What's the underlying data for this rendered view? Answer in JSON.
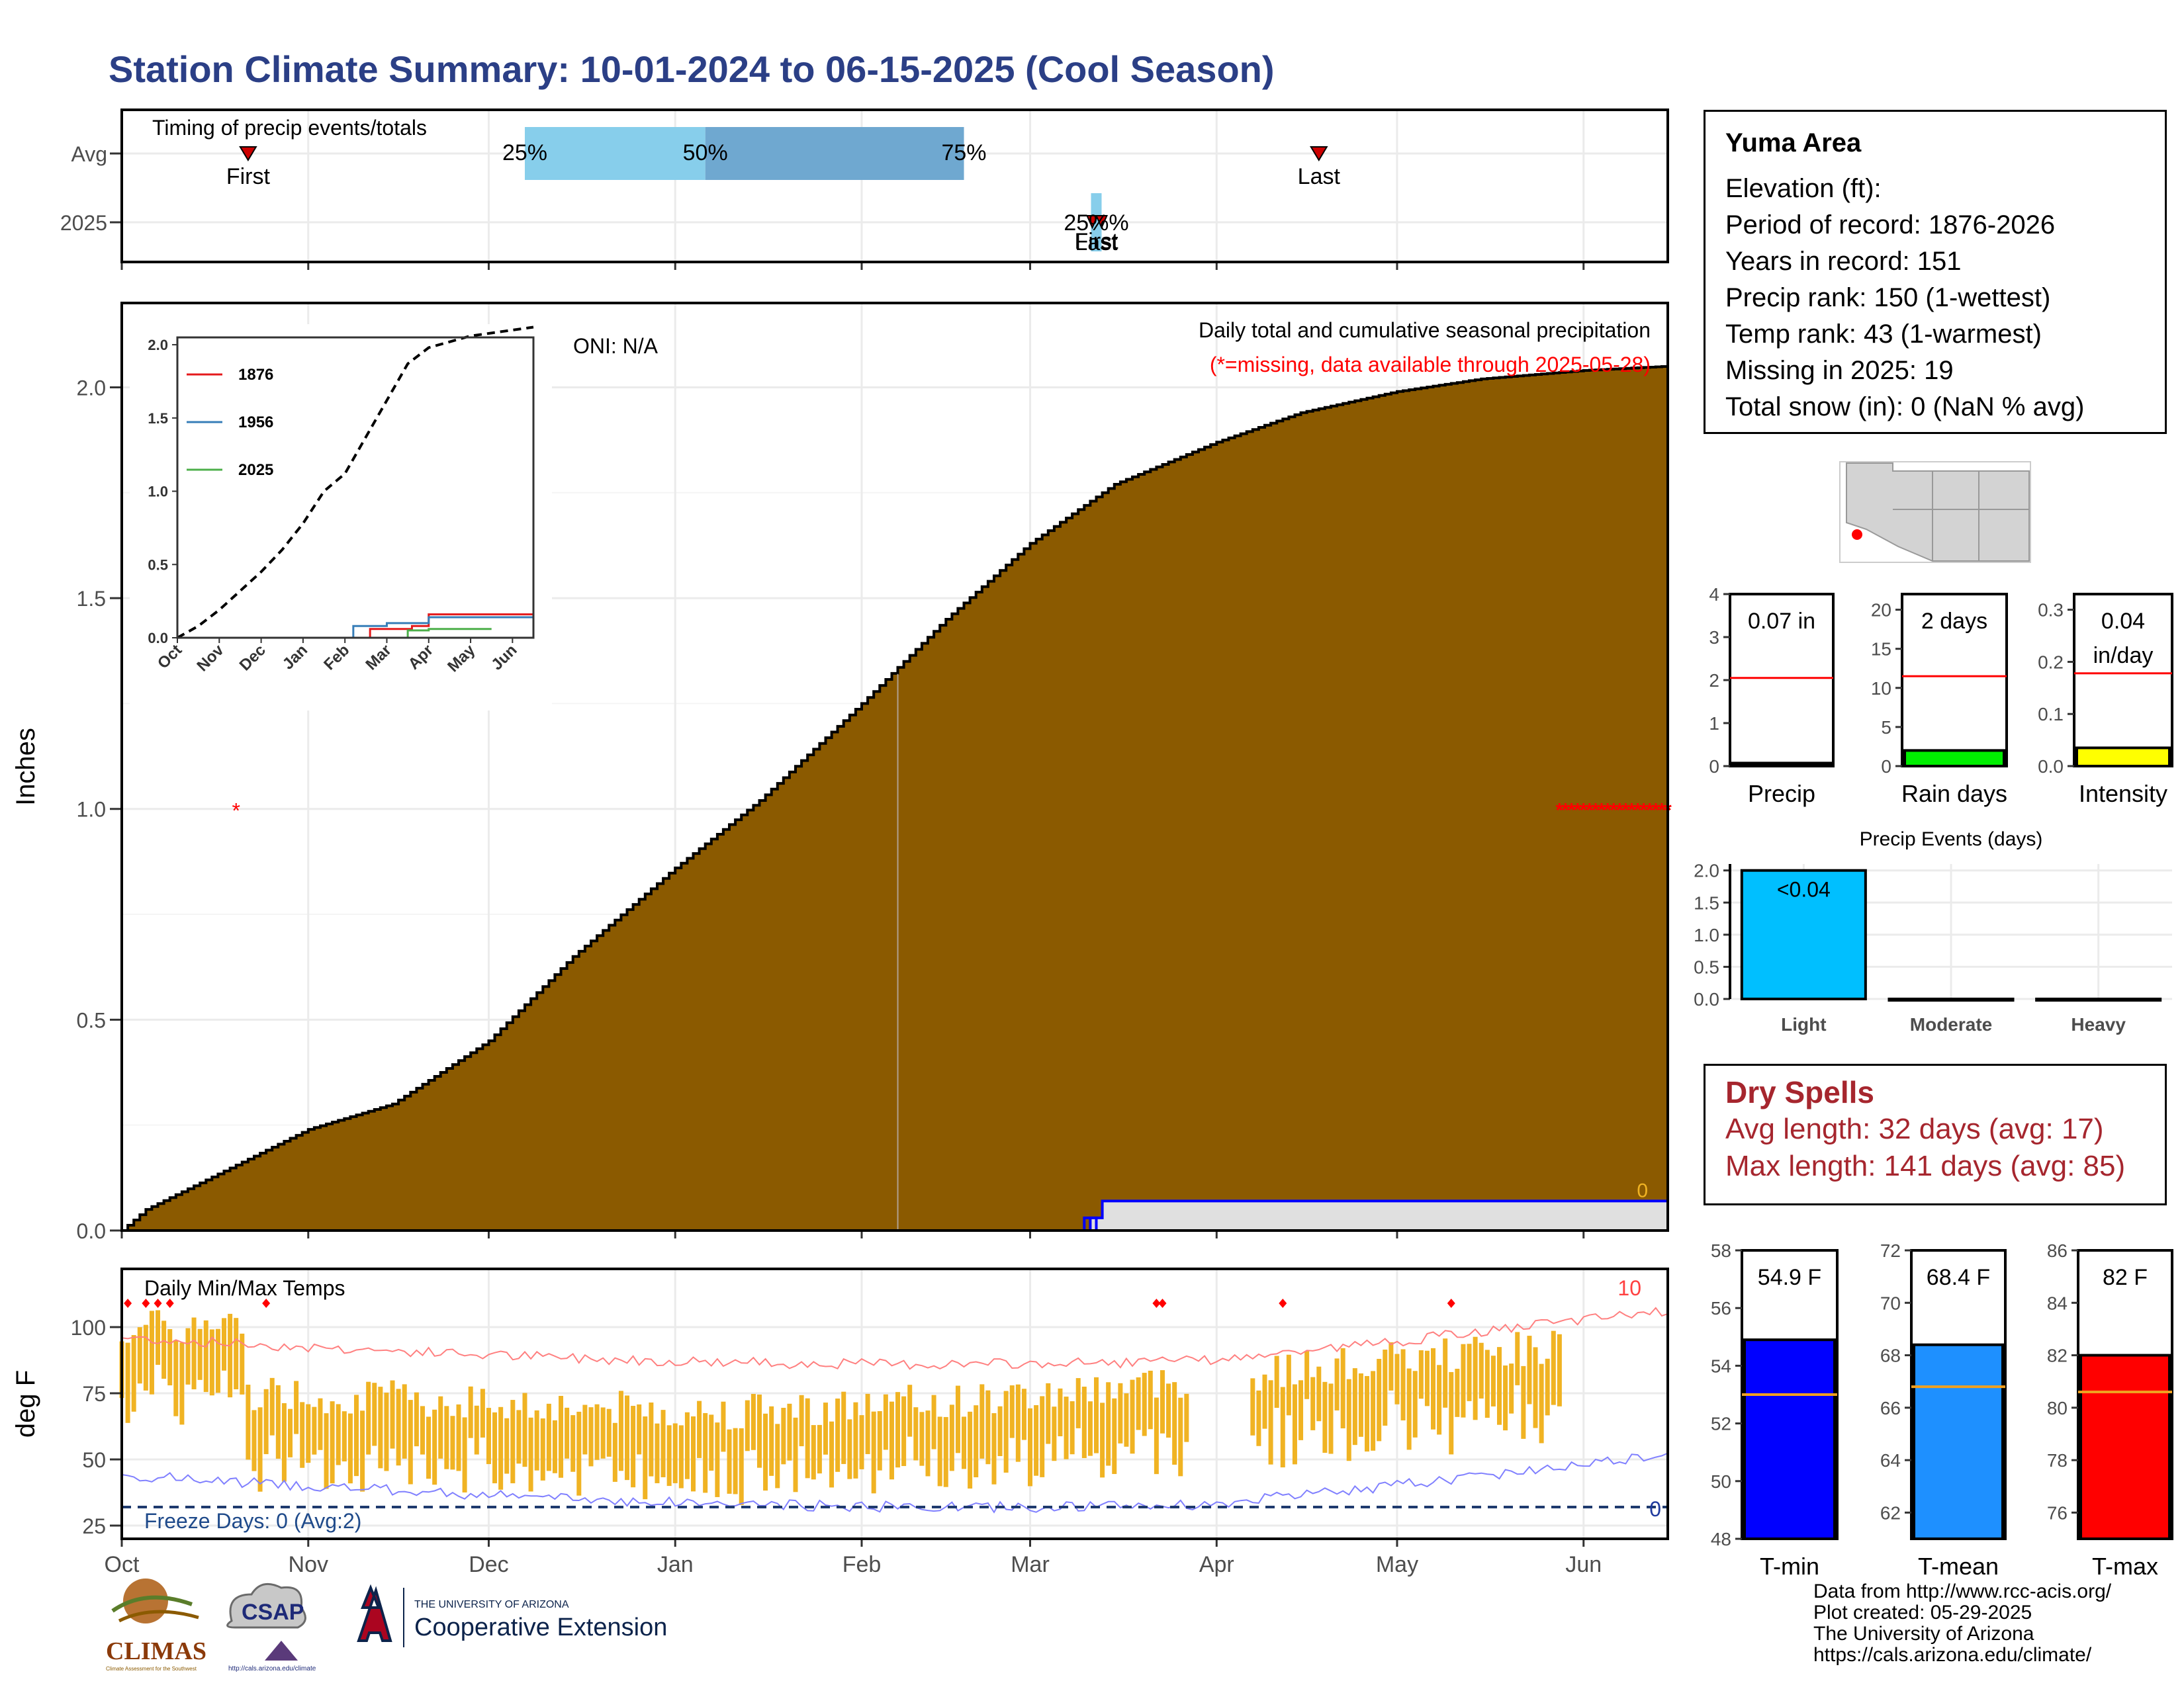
{
  "title": "Station Climate Summary: 10-01-2024 to 06-15-2025 (Cool Season)",
  "timing": {
    "label": "Timing of precip events/totals",
    "rows": [
      "Avg",
      "2025"
    ],
    "pct_labels": [
      "25%",
      "50%",
      "75%"
    ],
    "avg_pct_dates": [
      "2024-12-07",
      "2025-01-06",
      "2025-02-18"
    ],
    "avg_first": {
      "label": "First",
      "date": "2024-10-22"
    },
    "avg_last": {
      "label": "Last",
      "date": "2025-04-18"
    },
    "y2025_label_top": "25%",
    "y2025_labels_bottom": [
      "First",
      "Last"
    ],
    "y2025_date": "2025-03-12"
  },
  "chart_data": [
    {
      "type": "area",
      "title": "Daily total and cumulative seasonal precipitation",
      "subtitle": "(*=missing, data available through 2025-05-28)",
      "ylabel": "Inches",
      "ylim": [
        0,
        2.2
      ],
      "yticks": [
        "0.0",
        "0.5",
        "1.0",
        "1.5",
        "2.0"
      ],
      "xticks": [
        "Oct",
        "Nov",
        "Dec",
        "Jan",
        "Feb",
        "Mar",
        "Apr",
        "May",
        "Jun"
      ],
      "xtick_dates": [
        "2024-10-01",
        "2024-11-01",
        "2024-12-01",
        "2025-01-01",
        "2025-02-01",
        "2025-03-01",
        "2025-04-01",
        "2025-05-01",
        "2025-06-01"
      ],
      "x_range": [
        "2024-10-01",
        "2025-06-15"
      ],
      "oni_label": "ONI: N/A",
      "missing_marker_label": "*",
      "end_label_0": "0",
      "avg_cumulative": {
        "name": "Average cumulative",
        "x": [
          "2024-10-01",
          "2024-10-05",
          "2024-10-15",
          "2024-11-01",
          "2024-11-15",
          "2024-12-01",
          "2024-12-15",
          "2025-01-01",
          "2025-01-15",
          "2025-02-01",
          "2025-02-15",
          "2025-03-01",
          "2025-03-15",
          "2025-04-01",
          "2025-04-15",
          "2025-05-01",
          "2025-05-15",
          "2025-06-01",
          "2025-06-15"
        ],
        "y": [
          0.0,
          0.05,
          0.12,
          0.24,
          0.3,
          0.45,
          0.65,
          0.86,
          1.02,
          1.25,
          1.45,
          1.63,
          1.77,
          1.87,
          1.94,
          1.99,
          2.02,
          2.04,
          2.05
        ]
      },
      "y2025_cumulative": {
        "name": "2025",
        "x": [
          "2025-03-10",
          "2025-03-11",
          "2025-03-12",
          "2025-03-13",
          "2025-06-15"
        ],
        "y": [
          0.0,
          0.03,
          0.03,
          0.07,
          0.07
        ]
      },
      "missing_period": [
        "2025-05-28",
        "2025-06-15"
      ]
    },
    {
      "type": "line",
      "inset": true,
      "xticks": [
        "Oct",
        "Nov",
        "Dec",
        "Jan",
        "Feb",
        "Mar",
        "Apr",
        "May",
        "Jun"
      ],
      "yticks": [
        "0.0",
        "0.5",
        "1.0",
        "1.5",
        "2.0"
      ],
      "ylim": [
        0,
        2.0
      ],
      "series": [
        {
          "name": "1876",
          "color": "#e41a1c",
          "x": [
            0,
            4.5,
            4.6,
            5.0,
            5.6,
            6.0,
            6.1,
            8.5
          ],
          "y": [
            0,
            0,
            0.06,
            0.06,
            0.08,
            0.16,
            0.16,
            0.18
          ]
        },
        {
          "name": "1956",
          "color": "#377eb8",
          "x": [
            0,
            4.0,
            4.2,
            4.5,
            5.0,
            5.5,
            6.0,
            7.0,
            8.5
          ],
          "y": [
            0,
            0,
            0.08,
            0.08,
            0.1,
            0.1,
            0.14,
            0.14,
            0.14
          ]
        },
        {
          "name": "2025",
          "color": "#4daf4a",
          "x": [
            0,
            5.2,
            5.5,
            6.0,
            7.5
          ],
          "y": [
            0,
            0,
            0.05,
            0.06,
            0.06
          ]
        },
        {
          "name": "avg",
          "color": "#000000",
          "dashed": true,
          "x": [
            0,
            0.5,
            1,
            1.5,
            2,
            2.5,
            3,
            3.5,
            4,
            4.5,
            5,
            5.5,
            6,
            6.5,
            7,
            7.5,
            8,
            8.5
          ],
          "y": [
            0,
            0.08,
            0.19,
            0.32,
            0.45,
            0.6,
            0.78,
            1.0,
            1.12,
            1.37,
            1.62,
            1.87,
            1.98,
            2.02,
            2.06,
            2.08,
            2.1,
            2.12
          ]
        }
      ]
    },
    {
      "type": "bar",
      "ylabel": "deg F",
      "title": "Daily Min/Max Temps",
      "ylim": [
        20,
        122
      ],
      "yticks": [
        "25",
        "50",
        "75",
        "100"
      ],
      "xticks": [
        "Oct",
        "Nov",
        "Dec",
        "Jan",
        "Feb",
        "Mar",
        "Apr",
        "May",
        "Jun"
      ],
      "freeze_label": "Freeze Days: 0 (Avg:2)",
      "freeze_line": 32,
      "right_label_top": "10",
      "right_label_bottom": "0",
      "data_end": "2025-05-28",
      "gap": [
        "2025-03-28",
        "2025-04-07"
      ],
      "record_high_dates": [
        "2024-10-02",
        "2024-10-05",
        "2024-10-07",
        "2024-10-09",
        "2024-10-25",
        "2025-03-22",
        "2025-03-23",
        "2025-04-12",
        "2025-05-10"
      ]
    },
    {
      "type": "bar",
      "panel": "precip",
      "xlabel": "Precip",
      "value_label": "0.07 in",
      "value": 0.07,
      "avg": 2.05,
      "ylim": [
        0,
        4
      ],
      "yticks": [
        "0",
        "1",
        "2",
        "3",
        "4"
      ],
      "color": "#000000"
    },
    {
      "type": "bar",
      "panel": "rain-days",
      "xlabel": "Rain days",
      "value_label": "2 days",
      "value": 2,
      "avg": 11.5,
      "ylim": [
        0,
        22
      ],
      "yticks": [
        "0",
        "5",
        "10",
        "15",
        "20"
      ],
      "color": "#00ee00"
    },
    {
      "type": "bar",
      "panel": "intensity",
      "xlabel": "Intensity",
      "value_label": "0.04",
      "value_label2": "in/day",
      "value": 0.035,
      "avg": 0.178,
      "ylim": [
        0,
        0.33
      ],
      "yticks": [
        "0.0",
        "0.1",
        "0.2",
        "0.3"
      ],
      "color": "#ffff00"
    },
    {
      "type": "bar",
      "panel": "precip-events",
      "title": "Precip Events (days)",
      "categories": [
        "Light",
        "Moderate",
        "Heavy"
      ],
      "values": [
        2,
        0,
        0
      ],
      "ylim": [
        0,
        2.1
      ],
      "yticks": [
        "0.0",
        "0.5",
        "1.0",
        "1.5",
        "2.0"
      ],
      "bar_label": "<0.04",
      "color": "#00bfff"
    },
    {
      "type": "bar",
      "panel": "temps",
      "groups": [
        {
          "xlabel": "T-min",
          "value_label": "54.9 F",
          "value": 54.9,
          "avg": 53.0,
          "ylim": [
            48,
            58
          ],
          "yticks": [
            "48",
            "50",
            "52",
            "54",
            "56",
            "58"
          ],
          "color": "#0000ff"
        },
        {
          "xlabel": "T-mean",
          "value_label": "68.4 F",
          "value": 68.4,
          "avg": 66.8,
          "ylim": [
            61,
            72
          ],
          "yticks": [
            "62",
            "64",
            "66",
            "68",
            "70",
            "72"
          ],
          "color": "#1e90ff"
        },
        {
          "xlabel": "T-max",
          "value_label": "82 F",
          "value": 82,
          "avg": 80.6,
          "ylim": [
            75,
            86
          ],
          "yticks": [
            "76",
            "78",
            "80",
            "82",
            "84",
            "86"
          ],
          "color": "#ff0000"
        }
      ]
    }
  ],
  "info": {
    "station": "Yuma Area",
    "lines": [
      "Elevation (ft):",
      "Period of record: 1876-2026",
      "Years in record: 151",
      "Precip rank: 150 (1-wettest)",
      "Temp rank: 43 (1-warmest)",
      "Missing in 2025: 19",
      "Total snow (in): 0 (NaN % avg)"
    ]
  },
  "dry_spells": {
    "title": "Dry Spells",
    "avg": "Avg length: 32 days (avg: 17)",
    "max": "Max length: 141 days (avg: 85)"
  },
  "footer": [
    "Data from http://www.rcc-acis.org/",
    "Plot created: 05-29-2025",
    "The University of Arizona",
    "https://cals.arizona.edu/climate/"
  ],
  "logos": {
    "climas": "CLIMAS",
    "climas_sub": "Climate Assessment for the Southwest",
    "csap": "CSAP",
    "csap_url": "http://cals.arizona.edu/climate",
    "ua_line1": "THE UNIVERSITY OF ARIZONA",
    "ua_line2": "Cooperative Extension"
  },
  "colors": {
    "title": "#2b3f86",
    "avg_fill": "#8b5a00",
    "bar_2025": "#0000ff",
    "temp_bar": "#f0b323",
    "record_line": "#ff8080",
    "low_line": "#8080ff",
    "dry_spell": "#a6262e"
  }
}
